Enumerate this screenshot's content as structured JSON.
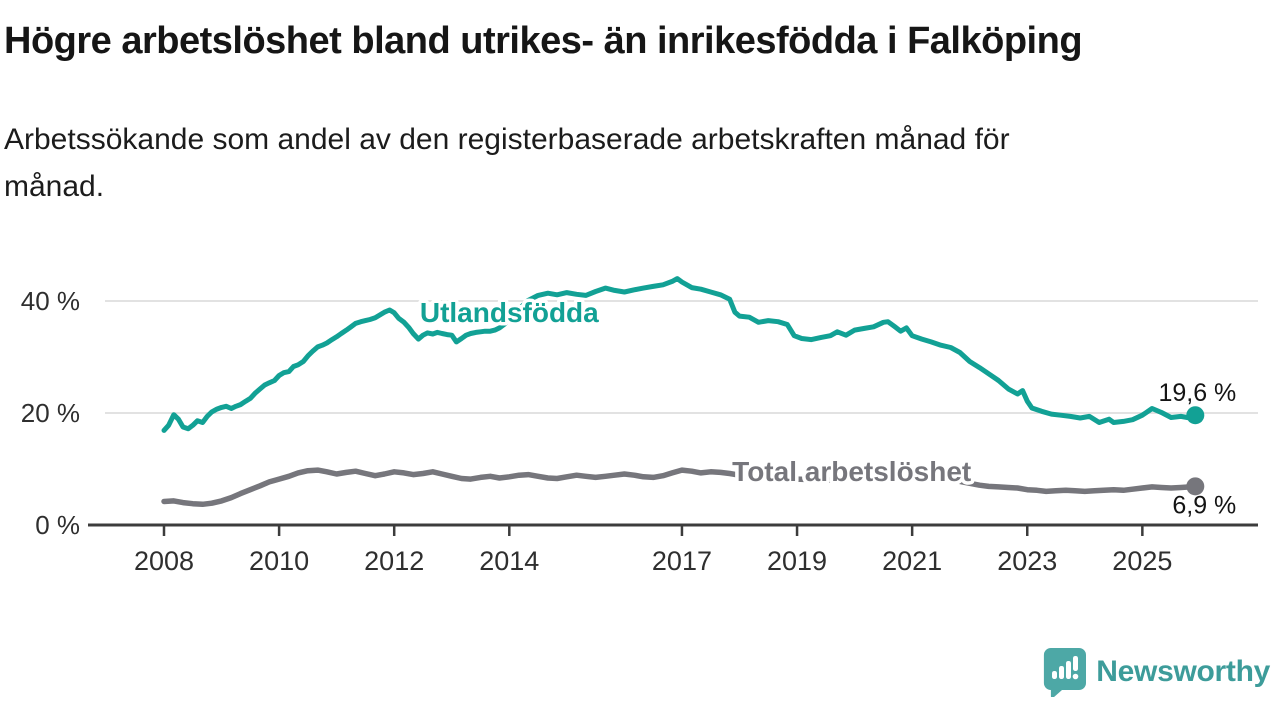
{
  "header": {
    "title": "Högre arbetslöshet bland utrikes- än inrikesfödda i Falköping",
    "subtitle_lines": [
      "Arbetssökande som andel av den registerbaserade arbetskraften månad för",
      "månad."
    ]
  },
  "footer": {
    "brand": "Newsworthy",
    "logo_icon": "speech-bubble-bar-chart"
  },
  "colors": {
    "series_foreign_born": "#12a195",
    "series_total": "#76767c",
    "grid": "#d8d8d8",
    "axis": "#3c3c3c",
    "axis_text": "#2f2f2f",
    "value_label_text": "#141414",
    "brand_teal": "#4da8a6"
  },
  "chart_data": {
    "type": "line",
    "title": "Högre arbetslöshet bland utrikes- än inrikesfödda i Falköping",
    "subtitle": "Arbetssökande som andel av den registerbaserade arbetskraften månad för månad.",
    "x_axis": {
      "ticks": [
        2008,
        2010,
        2012,
        2014,
        2017,
        2019,
        2021,
        2023,
        2025
      ],
      "range": [
        2006.7,
        2027.0
      ],
      "unit": "year"
    },
    "y_axis": {
      "ticks": [
        {
          "value": 0,
          "label": "0 %"
        },
        {
          "value": 20,
          "label": "20 %"
        },
        {
          "value": 40,
          "label": "40 %"
        }
      ],
      "range": [
        0,
        47
      ],
      "unit": "percent",
      "grid": true
    },
    "legend_position": "inline-labels",
    "series": [
      {
        "name": "Utlandsfödda",
        "color": "#12a195",
        "end_value": 19.6,
        "end_label": "19,6 %",
        "label_pos": {
          "t": 2014.0,
          "v": 37.9
        },
        "end_label_side": "above",
        "points": [
          [
            2008.0,
            16.9
          ],
          [
            2008.08,
            17.8
          ],
          [
            2008.17,
            19.7
          ],
          [
            2008.25,
            18.9
          ],
          [
            2008.33,
            17.5
          ],
          [
            2008.42,
            17.2
          ],
          [
            2008.5,
            17.8
          ],
          [
            2008.58,
            18.6
          ],
          [
            2008.67,
            18.3
          ],
          [
            2008.75,
            19.4
          ],
          [
            2008.83,
            20.2
          ],
          [
            2008.92,
            20.7
          ],
          [
            2009.0,
            21.0
          ],
          [
            2009.08,
            21.2
          ],
          [
            2009.17,
            20.8
          ],
          [
            2009.25,
            21.2
          ],
          [
            2009.33,
            21.5
          ],
          [
            2009.42,
            22.1
          ],
          [
            2009.5,
            22.6
          ],
          [
            2009.58,
            23.5
          ],
          [
            2009.67,
            24.3
          ],
          [
            2009.75,
            25.0
          ],
          [
            2009.83,
            25.4
          ],
          [
            2009.92,
            25.8
          ],
          [
            2010.0,
            26.7
          ],
          [
            2010.08,
            27.2
          ],
          [
            2010.17,
            27.4
          ],
          [
            2010.25,
            28.3
          ],
          [
            2010.33,
            28.6
          ],
          [
            2010.42,
            29.2
          ],
          [
            2010.5,
            30.2
          ],
          [
            2010.58,
            31.0
          ],
          [
            2010.67,
            31.8
          ],
          [
            2010.75,
            32.1
          ],
          [
            2010.83,
            32.5
          ],
          [
            2010.92,
            33.1
          ],
          [
            2011.0,
            33.6
          ],
          [
            2011.08,
            34.2
          ],
          [
            2011.17,
            34.8
          ],
          [
            2011.25,
            35.4
          ],
          [
            2011.33,
            36.0
          ],
          [
            2011.42,
            36.3
          ],
          [
            2011.5,
            36.5
          ],
          [
            2011.58,
            36.7
          ],
          [
            2011.67,
            37.0
          ],
          [
            2011.75,
            37.5
          ],
          [
            2011.83,
            38.0
          ],
          [
            2011.92,
            38.4
          ],
          [
            2012.0,
            37.9
          ],
          [
            2012.08,
            36.9
          ],
          [
            2012.17,
            36.2
          ],
          [
            2012.25,
            35.3
          ],
          [
            2012.33,
            34.2
          ],
          [
            2012.42,
            33.2
          ],
          [
            2012.5,
            33.9
          ],
          [
            2012.58,
            34.3
          ],
          [
            2012.67,
            34.1
          ],
          [
            2012.75,
            34.4
          ],
          [
            2012.83,
            34.2
          ],
          [
            2012.92,
            34.0
          ],
          [
            2013.0,
            33.9
          ],
          [
            2013.08,
            32.7
          ],
          [
            2013.17,
            33.3
          ],
          [
            2013.25,
            33.9
          ],
          [
            2013.33,
            34.2
          ],
          [
            2013.42,
            34.4
          ],
          [
            2013.5,
            34.5
          ],
          [
            2013.58,
            34.6
          ],
          [
            2013.67,
            34.6
          ],
          [
            2013.75,
            34.8
          ],
          [
            2013.83,
            35.2
          ],
          [
            2013.92,
            35.9
          ],
          [
            2014.0,
            36.8
          ],
          [
            2014.17,
            38.6
          ],
          [
            2014.33,
            40.1
          ],
          [
            2014.5,
            41.0
          ],
          [
            2014.67,
            41.4
          ],
          [
            2014.83,
            41.1
          ],
          [
            2015.0,
            41.5
          ],
          [
            2015.17,
            41.2
          ],
          [
            2015.33,
            41.0
          ],
          [
            2015.5,
            41.7
          ],
          [
            2015.67,
            42.3
          ],
          [
            2015.83,
            41.9
          ],
          [
            2016.0,
            41.6
          ],
          [
            2016.17,
            42.0
          ],
          [
            2016.33,
            42.3
          ],
          [
            2016.5,
            42.6
          ],
          [
            2016.67,
            42.9
          ],
          [
            2016.83,
            43.5
          ],
          [
            2016.92,
            44.0
          ],
          [
            2017.0,
            43.4
          ],
          [
            2017.17,
            42.4
          ],
          [
            2017.33,
            42.1
          ],
          [
            2017.5,
            41.6
          ],
          [
            2017.67,
            41.1
          ],
          [
            2017.83,
            40.3
          ],
          [
            2017.92,
            38.0
          ],
          [
            2018.0,
            37.3
          ],
          [
            2018.17,
            37.1
          ],
          [
            2018.33,
            36.2
          ],
          [
            2018.5,
            36.5
          ],
          [
            2018.67,
            36.3
          ],
          [
            2018.83,
            35.8
          ],
          [
            2018.95,
            33.8
          ],
          [
            2019.08,
            33.3
          ],
          [
            2019.25,
            33.1
          ],
          [
            2019.42,
            33.5
          ],
          [
            2019.58,
            33.8
          ],
          [
            2019.7,
            34.5
          ],
          [
            2019.85,
            33.9
          ],
          [
            2020.0,
            34.8
          ],
          [
            2020.17,
            35.1
          ],
          [
            2020.33,
            35.4
          ],
          [
            2020.5,
            36.2
          ],
          [
            2020.58,
            36.3
          ],
          [
            2020.7,
            35.4
          ],
          [
            2020.8,
            34.6
          ],
          [
            2020.9,
            35.2
          ],
          [
            2021.0,
            33.8
          ],
          [
            2021.17,
            33.2
          ],
          [
            2021.33,
            32.7
          ],
          [
            2021.5,
            32.1
          ],
          [
            2021.67,
            31.7
          ],
          [
            2021.83,
            30.8
          ],
          [
            2022.0,
            29.2
          ],
          [
            2022.17,
            28.1
          ],
          [
            2022.33,
            27.0
          ],
          [
            2022.5,
            25.8
          ],
          [
            2022.67,
            24.3
          ],
          [
            2022.83,
            23.4
          ],
          [
            2022.92,
            24.0
          ],
          [
            2023.0,
            22.1
          ],
          [
            2023.08,
            20.9
          ],
          [
            2023.25,
            20.3
          ],
          [
            2023.42,
            19.8
          ],
          [
            2023.58,
            19.6
          ],
          [
            2023.75,
            19.4
          ],
          [
            2023.92,
            19.1
          ],
          [
            2024.08,
            19.4
          ],
          [
            2024.25,
            18.3
          ],
          [
            2024.42,
            18.9
          ],
          [
            2024.5,
            18.3
          ],
          [
            2024.67,
            18.5
          ],
          [
            2024.83,
            18.8
          ],
          [
            2025.0,
            19.6
          ],
          [
            2025.17,
            20.8
          ],
          [
            2025.33,
            20.1
          ],
          [
            2025.5,
            19.2
          ],
          [
            2025.67,
            19.4
          ],
          [
            2025.83,
            19.1
          ],
          [
            2025.92,
            19.6
          ]
        ]
      },
      {
        "name": "Total arbetslöshet",
        "color": "#76767c",
        "end_value": 6.9,
        "end_label": "6,9 %",
        "label_pos": {
          "t": 2019.95,
          "v": 9.5
        },
        "end_label_side": "below",
        "points": [
          [
            2008.0,
            4.2
          ],
          [
            2008.17,
            4.3
          ],
          [
            2008.33,
            4.0
          ],
          [
            2008.5,
            3.8
          ],
          [
            2008.67,
            3.7
          ],
          [
            2008.83,
            3.9
          ],
          [
            2009.0,
            4.3
          ],
          [
            2009.17,
            4.9
          ],
          [
            2009.33,
            5.6
          ],
          [
            2009.5,
            6.3
          ],
          [
            2009.67,
            7.0
          ],
          [
            2009.83,
            7.7
          ],
          [
            2010.0,
            8.2
          ],
          [
            2010.17,
            8.7
          ],
          [
            2010.33,
            9.3
          ],
          [
            2010.5,
            9.7
          ],
          [
            2010.67,
            9.8
          ],
          [
            2010.83,
            9.5
          ],
          [
            2011.0,
            9.1
          ],
          [
            2011.17,
            9.4
          ],
          [
            2011.33,
            9.6
          ],
          [
            2011.5,
            9.2
          ],
          [
            2011.67,
            8.8
          ],
          [
            2011.83,
            9.1
          ],
          [
            2012.0,
            9.5
          ],
          [
            2012.17,
            9.3
          ],
          [
            2012.33,
            9.0
          ],
          [
            2012.5,
            9.2
          ],
          [
            2012.67,
            9.5
          ],
          [
            2012.83,
            9.1
          ],
          [
            2013.0,
            8.7
          ],
          [
            2013.17,
            8.3
          ],
          [
            2013.33,
            8.2
          ],
          [
            2013.5,
            8.5
          ],
          [
            2013.67,
            8.7
          ],
          [
            2013.83,
            8.4
          ],
          [
            2014.0,
            8.6
          ],
          [
            2014.17,
            8.9
          ],
          [
            2014.33,
            9.0
          ],
          [
            2014.5,
            8.7
          ],
          [
            2014.67,
            8.4
          ],
          [
            2014.83,
            8.3
          ],
          [
            2015.0,
            8.6
          ],
          [
            2015.17,
            8.9
          ],
          [
            2015.33,
            8.7
          ],
          [
            2015.5,
            8.5
          ],
          [
            2015.67,
            8.7
          ],
          [
            2015.83,
            8.9
          ],
          [
            2016.0,
            9.1
          ],
          [
            2016.17,
            8.9
          ],
          [
            2016.33,
            8.6
          ],
          [
            2016.5,
            8.5
          ],
          [
            2016.67,
            8.8
          ],
          [
            2016.83,
            9.3
          ],
          [
            2017.0,
            9.8
          ],
          [
            2017.17,
            9.6
          ],
          [
            2017.33,
            9.3
          ],
          [
            2017.5,
            9.5
          ],
          [
            2017.67,
            9.4
          ],
          [
            2017.83,
            9.2
          ],
          [
            2018.0,
            8.9
          ],
          [
            2018.25,
            8.7
          ],
          [
            2018.5,
            8.5
          ],
          [
            2018.75,
            8.3
          ],
          [
            2019.0,
            8.2
          ],
          [
            2019.25,
            8.1
          ],
          [
            2019.5,
            8.0
          ],
          [
            2019.75,
            8.1
          ],
          [
            2020.0,
            8.5
          ],
          [
            2020.25,
            9.8
          ],
          [
            2020.42,
            10.4
          ],
          [
            2020.58,
            10.3
          ],
          [
            2020.75,
            10.0
          ],
          [
            2020.92,
            9.7
          ],
          [
            2021.17,
            9.2
          ],
          [
            2021.42,
            8.7
          ],
          [
            2021.67,
            8.1
          ],
          [
            2021.92,
            7.6
          ],
          [
            2022.17,
            7.1
          ],
          [
            2022.33,
            6.9
          ],
          [
            2022.5,
            6.8
          ],
          [
            2022.67,
            6.7
          ],
          [
            2022.83,
            6.6
          ],
          [
            2023.0,
            6.3
          ],
          [
            2023.17,
            6.2
          ],
          [
            2023.33,
            6.0
          ],
          [
            2023.5,
            6.1
          ],
          [
            2023.67,
            6.2
          ],
          [
            2023.83,
            6.1
          ],
          [
            2024.0,
            6.0
          ],
          [
            2024.17,
            6.1
          ],
          [
            2024.33,
            6.2
          ],
          [
            2024.5,
            6.3
          ],
          [
            2024.67,
            6.2
          ],
          [
            2024.83,
            6.4
          ],
          [
            2025.0,
            6.6
          ],
          [
            2025.17,
            6.8
          ],
          [
            2025.33,
            6.7
          ],
          [
            2025.5,
            6.6
          ],
          [
            2025.67,
            6.7
          ],
          [
            2025.83,
            6.8
          ],
          [
            2025.92,
            6.9
          ]
        ]
      }
    ]
  }
}
